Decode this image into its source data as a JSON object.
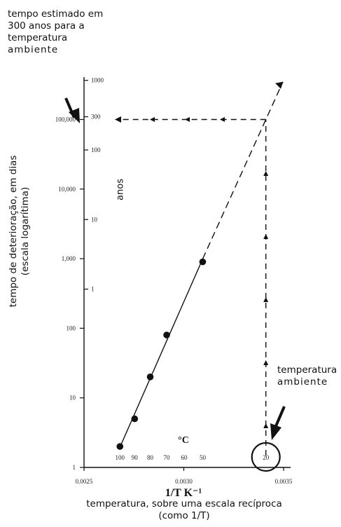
{
  "annotations": {
    "top_note": [
      "tempo estimado em",
      "300 anos para a",
      "temperatura",
      "ambiente"
    ],
    "right_note": [
      "temperatura",
      "ambiente"
    ],
    "bottom_note": [
      "temperatura, sobre uma escala recíproca",
      "(como 1/T)"
    ],
    "y_axis_note": [
      "tempo de deterioração, em dias",
      "(escala logarítima)"
    ]
  },
  "chart_data": {
    "type": "scatter",
    "title": "",
    "xlabel": "1/T K⁻¹",
    "ylabel": "",
    "x_scale": "reciprocal",
    "x_lim": [
      0.0025,
      0.0035
    ],
    "x_ticks": [
      "0.0025",
      "0.0030",
      "0.0035"
    ],
    "y_scale": "log",
    "y_lim": [
      1,
      1000000
    ],
    "y_ticks_days": [
      "1",
      "10",
      "100",
      "1,000",
      "10,000",
      "100,000"
    ],
    "y_ticks_years": [
      "1",
      "10",
      "100",
      "300",
      "1000"
    ],
    "y_years_label": "anos",
    "celsius_label": "°C",
    "celsius_ticks": [
      "100",
      "90",
      "80",
      "70",
      "60",
      "50",
      "20"
    ],
    "series": [
      {
        "points": [
          {
            "temp_c": 100,
            "days": 2
          },
          {
            "temp_c": 90,
            "days": 5
          },
          {
            "temp_c": 80,
            "days": 20
          },
          {
            "temp_c": 70,
            "days": 80
          },
          {
            "temp_c": 50,
            "days": 900
          }
        ]
      }
    ],
    "extrapolation": {
      "temp_c": 20,
      "days": 100000,
      "years": 300
    },
    "grid": false,
    "legend": "none"
  }
}
